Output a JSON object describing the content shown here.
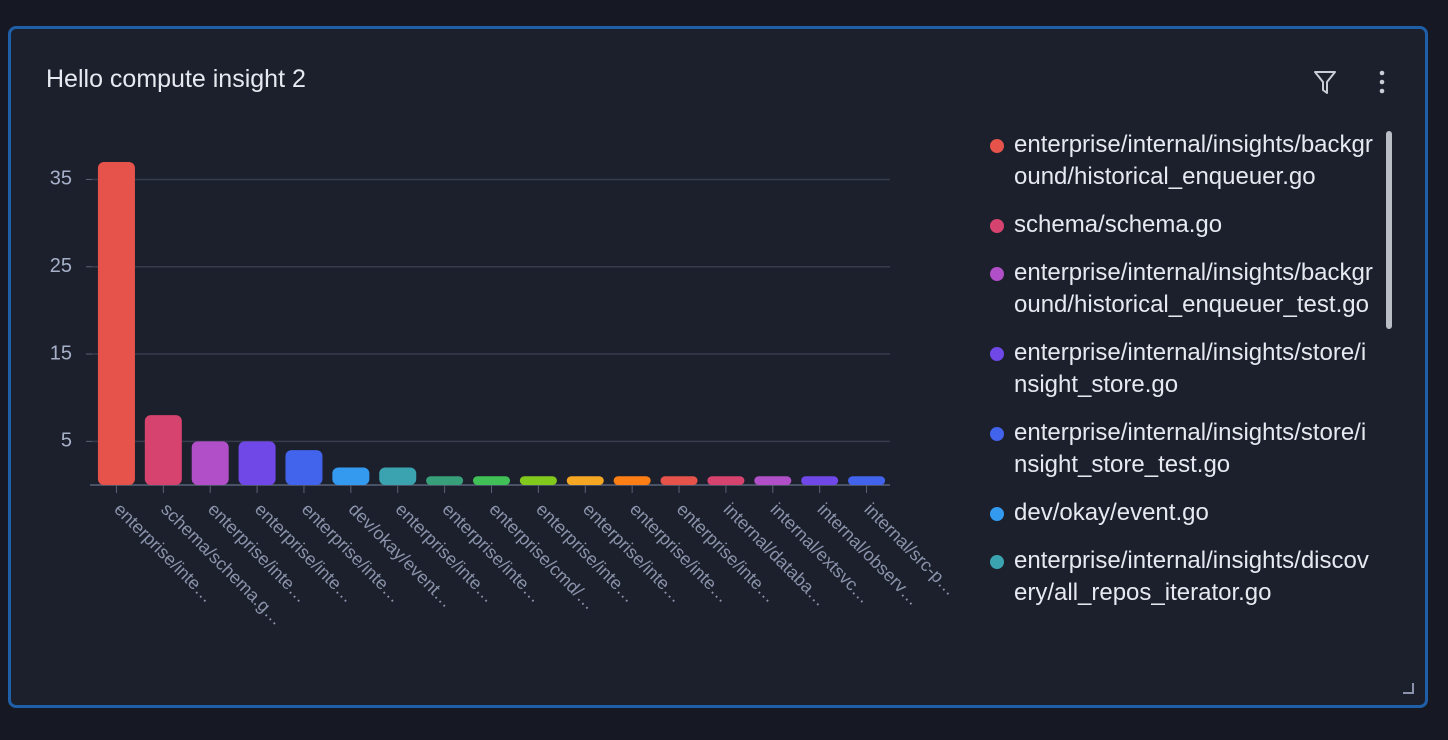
{
  "chart_data": {
    "type": "bar",
    "title": "Hello compute insight 2",
    "categories": [
      "enterprise/inte…",
      "schema/schema.g…",
      "enterprise/inte…",
      "enterprise/inte…",
      "enterprise/inte…",
      "dev/okay/event…",
      "enterprise/inte…",
      "enterprise/inte…",
      "enterprise/cmd/…",
      "enterprise/inte…",
      "enterprise/inte…",
      "enterprise/inte…",
      "enterprise/inte…",
      "internal/databa…",
      "internal/extsvc…",
      "internal/observ…",
      "internal/src-p…"
    ],
    "values": [
      37,
      8,
      5,
      5,
      4,
      2,
      2,
      1,
      1,
      1,
      1,
      1,
      1,
      1,
      1,
      1,
      1
    ],
    "colors": [
      "#e5534b",
      "#d6436e",
      "#b04fc7",
      "#7048e8",
      "#4263eb",
      "#339af0",
      "#3ba3b0",
      "#37a07a",
      "#40c057",
      "#82c91e",
      "#f5a623",
      "#fd7e14",
      "#e5534b",
      "#d6436e",
      "#b04fc7",
      "#7048e8",
      "#4263eb"
    ],
    "ylim": [
      0,
      37
    ],
    "yticks": [
      5,
      15,
      25,
      35
    ],
    "grid": true,
    "legend": [
      {
        "name": "enterprise/internal/insights/background/historical_enqueuer.go",
        "color": "#e5534b"
      },
      {
        "name": "schema/schema.go",
        "color": "#d6436e"
      },
      {
        "name": "enterprise/internal/insights/background/historical_enqueuer_test.go",
        "color": "#b04fc7"
      },
      {
        "name": "enterprise/internal/insights/store/insight_store.go",
        "color": "#7048e8"
      },
      {
        "name": "enterprise/internal/insights/store/insight_store_test.go",
        "color": "#4263eb"
      },
      {
        "name": "dev/okay/event.go",
        "color": "#339af0"
      },
      {
        "name": "enterprise/internal/insights/discovery/all_repos_iterator.go",
        "color": "#3ba3b0"
      }
    ]
  }
}
